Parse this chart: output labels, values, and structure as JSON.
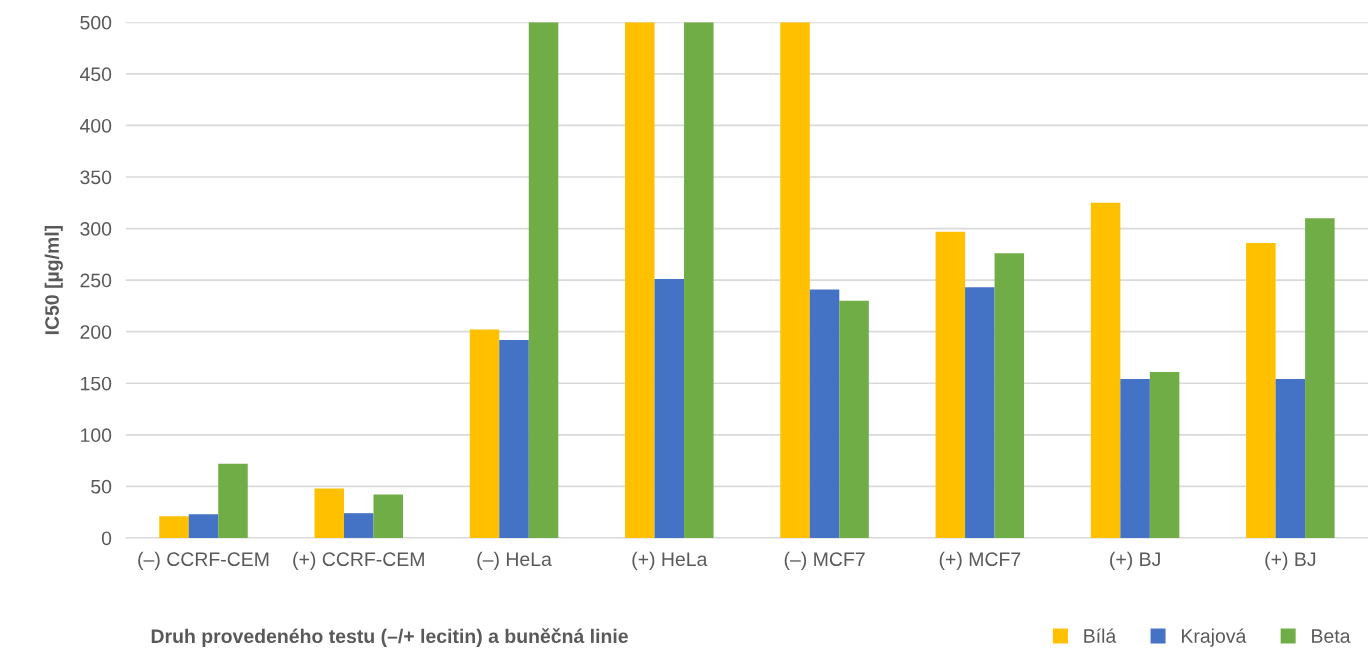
{
  "chart_data": {
    "type": "bar",
    "xlabel": "Druh provedeného testu (–/+ lecitin) a buněčná linie",
    "ylabel": "IC50 [µg/ml]",
    "categories": [
      "(–) CCRF-CEM",
      "(+) CCRF-CEM",
      "(–) HeLa",
      "(+) HeLa",
      "(–) MCF7",
      "(+) MCF7",
      "(+) BJ",
      "(+) BJ"
    ],
    "series": [
      {
        "name": "Bílá",
        "color": "#ffc000",
        "values": [
          21,
          48,
          202,
          500,
          500,
          297,
          325,
          286
        ]
      },
      {
        "name": "Krajová",
        "color": "#4472c4",
        "values": [
          23,
          24,
          192,
          251,
          241,
          243,
          154,
          154
        ]
      },
      {
        "name": "Beta",
        "color": "#70ad47",
        "values": [
          72,
          42,
          500,
          500,
          230,
          276,
          161,
          310
        ]
      }
    ],
    "ylim": [
      0,
      500
    ],
    "yticks": [
      0,
      50,
      100,
      150,
      200,
      250,
      300,
      350,
      400,
      450,
      500
    ],
    "grid": "y",
    "legend": "bottom right"
  }
}
